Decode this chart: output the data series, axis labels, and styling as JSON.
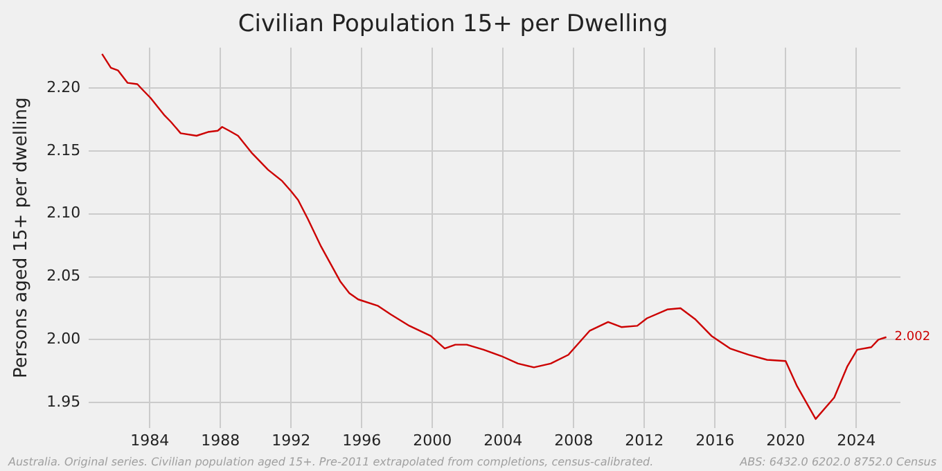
{
  "chart_data": {
    "type": "line",
    "title": "Civilian Population 15+ per Dwelling",
    "ylabel": "Persons aged 15+ per dwelling",
    "x": [
      1981.3,
      1981.8,
      1982.2,
      1982.75,
      1983.3,
      1983.5,
      1984.05,
      1984.85,
      1985.2,
      1985.75,
      1986.65,
      1987.3,
      1987.85,
      1988.1,
      1988.5,
      1989.0,
      1989.8,
      1990.7,
      1991.5,
      1992.0,
      1992.4,
      1992.95,
      1993.7,
      1994.25,
      1994.8,
      1995.3,
      1995.8,
      1996.9,
      1997.65,
      1998.7,
      1999.9,
      2000.7,
      2001.3,
      2001.95,
      2002.9,
      2003.9,
      2004.85,
      2005.75,
      2006.7,
      2007.7,
      2008.9,
      2009.95,
      2010.7,
      2011.6,
      2012.15,
      2013.3,
      2014.05,
      2014.9,
      2015.8,
      2016.85,
      2017.9,
      2018.95,
      2020.0,
      2020.65,
      2021.7,
      2022.75,
      2023.5,
      2024.05,
      2024.85,
      2025.25,
      2025.7
    ],
    "series": [
      {
        "color": "#cc0000",
        "values": [
          2.227,
          2.216,
          2.214,
          2.204,
          2.203,
          2.2,
          2.192,
          2.178,
          2.173,
          2.164,
          2.162,
          2.165,
          2.166,
          2.169,
          2.166,
          2.162,
          2.148,
          2.135,
          2.126,
          2.118,
          2.111,
          2.096,
          2.074,
          2.06,
          2.046,
          2.037,
          2.032,
          2.027,
          2.02,
          2.011,
          2.003,
          1.993,
          1.996,
          1.996,
          1.992,
          1.987,
          1.981,
          1.978,
          1.981,
          1.988,
          2.007,
          2.014,
          2.01,
          2.011,
          2.017,
          2.024,
          2.025,
          2.016,
          2.003,
          1.993,
          1.988,
          1.984,
          1.983,
          1.963,
          1.937,
          1.954,
          1.979,
          1.992,
          1.994,
          2.0,
          2.002
        ]
      }
    ],
    "xlim": [
      1980.55,
      2026.5
    ],
    "xticks": [
      1984,
      1988,
      1992,
      1996,
      2000,
      2004,
      2008,
      2012,
      2016,
      2020,
      2024
    ],
    "ylim": [
      1.93,
      2.232
    ],
    "yticks": [
      1.95,
      {
        "value": 2.0,
        "label": "2.00"
      },
      2.05,
      {
        "value": 2.1,
        "label": "2.10"
      },
      2.15,
      {
        "value": 2.2,
        "label": "2.20"
      }
    ],
    "grid": true,
    "legend": false,
    "marker": "none",
    "line_style": "solid",
    "annotations": [
      {
        "text": "2.002",
        "x": 2025.7,
        "y": 2.002
      },
      "Australia. Original series. Civilian population aged 15+. Pre-2011 extrapolated from completions, census-calibrated.",
      "ABS: 6432.0 6202.0 8752.0 Census"
    ]
  }
}
